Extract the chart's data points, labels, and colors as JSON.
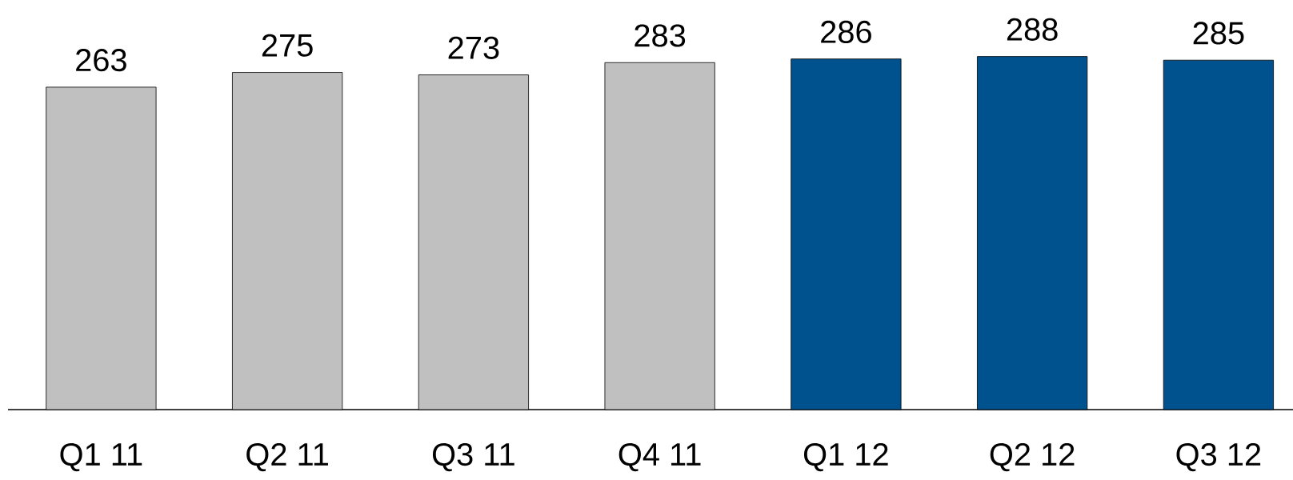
{
  "chart_data": {
    "type": "bar",
    "categories": [
      "Q1 11",
      "Q2 11",
      "Q3 11",
      "Q4 11",
      "Q1 12",
      "Q2 12",
      "Q3 12"
    ],
    "values": [
      263,
      275,
      273,
      283,
      286,
      288,
      285
    ],
    "colors": [
      "#c0c0c0",
      "#c0c0c0",
      "#c0c0c0",
      "#c0c0c0",
      "#00528f",
      "#00528f",
      "#00528f"
    ],
    "data_labels": true
  }
}
